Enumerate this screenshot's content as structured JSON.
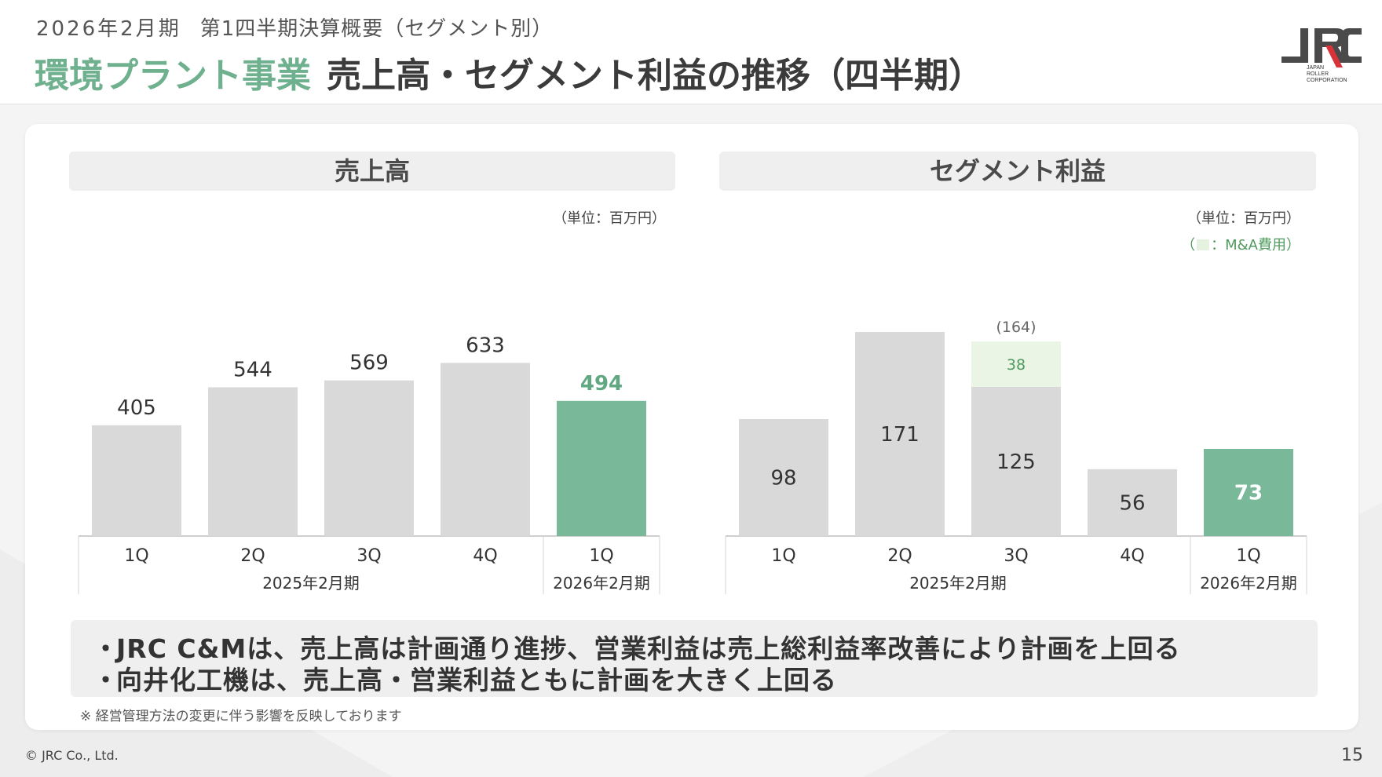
{
  "header": {
    "period": "2026年2月期",
    "subtitle": "第1四半期決算概要（セグメント別）",
    "segment_name": "環境プラント事業",
    "title": "売上高・セグメント利益の推移（四半期）"
  },
  "logo": {
    "mark": "JRC",
    "sub": "JAPAN\nROLLER\nCORPORATION"
  },
  "colors": {
    "gray_bar": "#d9d9d9",
    "accent_bar": "#7ab89a",
    "accent_text": "#5fa882",
    "ma_fill": "#eaf5e5",
    "ma_text": "#4f9a5e"
  },
  "chart_data": [
    {
      "type": "bar",
      "title": "売上高",
      "unit_label": "（単位：百万円）",
      "categories": [
        "1Q",
        "2Q",
        "3Q",
        "4Q",
        "1Q"
      ],
      "groups": [
        {
          "label": "2025年2月期",
          "count": 4
        },
        {
          "label": "2026年2月期",
          "count": 1
        }
      ],
      "values": [
        405,
        544,
        569,
        633,
        494
      ],
      "value_labels": [
        "405",
        "544",
        "569",
        "633",
        "494"
      ],
      "highlight_index": 4,
      "ylim": [
        0,
        700
      ]
    },
    {
      "type": "bar",
      "stacked": true,
      "title": "セグメント利益",
      "unit_label": "（単位：百万円）",
      "note_open": "（",
      "note_label": "：M&A費用）",
      "categories": [
        "1Q",
        "2Q",
        "3Q",
        "4Q",
        "1Q"
      ],
      "groups": [
        {
          "label": "2025年2月期",
          "count": 4
        },
        {
          "label": "2026年2月期",
          "count": 1
        }
      ],
      "series": [
        {
          "name": "セグメント利益",
          "values": [
            98,
            171,
            125,
            56,
            73
          ],
          "labels": [
            "98",
            "171",
            "125",
            "56",
            "73"
          ]
        },
        {
          "name": "M&A費用",
          "values": [
            0,
            0,
            38,
            0,
            0
          ],
          "labels": [
            "",
            "",
            "38",
            "",
            ""
          ]
        }
      ],
      "top_annotations": [
        "",
        "",
        "(164)",
        "",
        ""
      ],
      "highlight_index": 4,
      "ylim": [
        0,
        200
      ]
    }
  ],
  "bullets": [
    "JRC C&Mは、売上高は計画通り進捗、営業利益は売上総利益率改善により計画を上回る",
    "向井化工機は、売上高・営業利益ともに計画を大きく上回る"
  ],
  "bullet_marker": "・",
  "note": "※ 経営管理方法の変更に伴う影響を反映しております",
  "footer": {
    "copyright": "© JRC Co., Ltd.",
    "page": "15"
  }
}
